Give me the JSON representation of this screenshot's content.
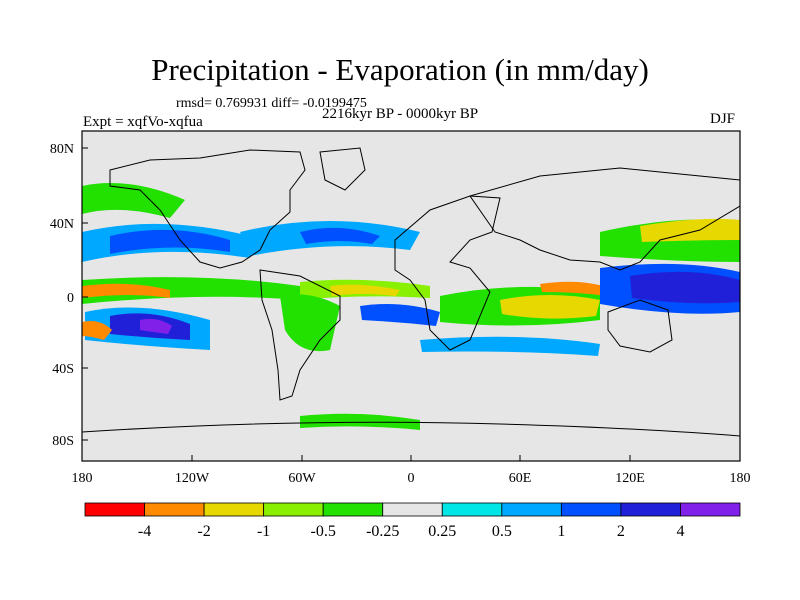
{
  "figure": {
    "title": "Precipitation - Evaporation (in mm/day)",
    "stats": "rmsd= 0.769931 diff= -0.0199475",
    "period": "2216kyr BP - 0000kyr BP",
    "experiment": "Expt = xqfVo-xqfua",
    "season": "DJF"
  },
  "map": {
    "lat_ticks": [
      "80N",
      "40N",
      "0",
      "40S",
      "80S"
    ],
    "lon_ticks": [
      "180",
      "120W",
      "60W",
      "0",
      "60E",
      "120E",
      "180"
    ],
    "background_color": "#e6e6e6"
  },
  "colorbar": {
    "labels": [
      "-4",
      "-2",
      "-1",
      "-0.5",
      "-0.25",
      "0.25",
      "0.5",
      "1",
      "2",
      "4"
    ],
    "colors": [
      "#ff0000",
      "#ff8a00",
      "#e6d800",
      "#88f000",
      "#22e000",
      "#e6e6e6",
      "#00e6e6",
      "#00a8ff",
      "#0050ff",
      "#2020d8",
      "#8020e8"
    ]
  }
}
